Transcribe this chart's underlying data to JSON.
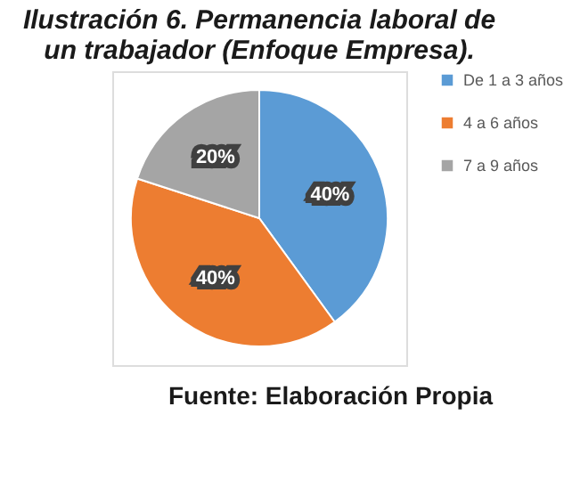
{
  "chart_data": {
    "type": "pie",
    "title": "Ilustración 6. Permanencia laboral de un trabajador (Enfoque Empresa).",
    "categories": [
      "De 1 a 3 años",
      "4 a 6 años",
      "7 a 9 años"
    ],
    "values": [
      40,
      40,
      20
    ],
    "colors": [
      "#5b9bd5",
      "#ed7d31",
      "#a5a5a5"
    ],
    "value_labels": [
      "40%",
      "40%",
      "20%"
    ],
    "legend": "right",
    "annotations": [
      "Fuente: Elaboración Propia"
    ]
  }
}
